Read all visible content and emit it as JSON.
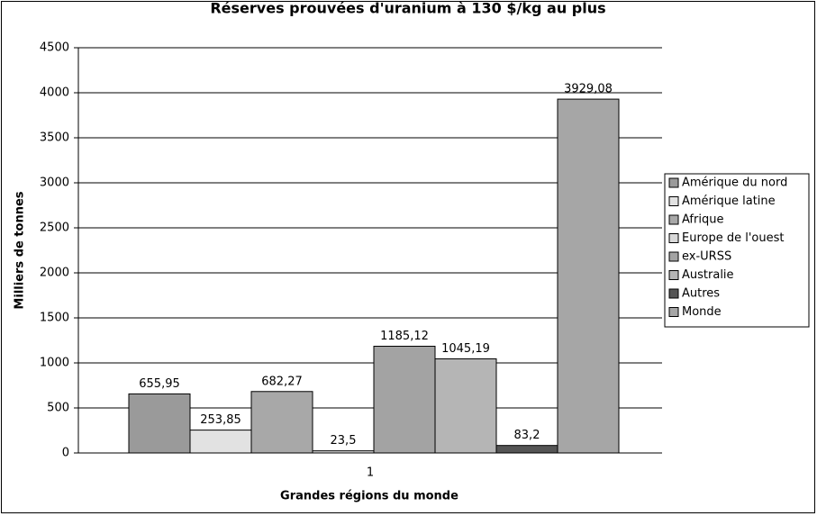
{
  "chart_data": {
    "type": "bar",
    "title": "Réserves prouvées d'uranium à 130  $/kg au plus",
    "x_label": "Grandes régions du monde",
    "y_label": "Milliers de tonnes",
    "categories": [
      "1"
    ],
    "series": [
      {
        "name": "Amérique du nord",
        "color": "#9a9a9a",
        "values": [
          655.95
        ],
        "value_labels": [
          "655,95"
        ]
      },
      {
        "name": "Amérique latine",
        "color": "#e2e2e2",
        "values": [
          253.85
        ],
        "value_labels": [
          "253,85"
        ]
      },
      {
        "name": "Afrique",
        "color": "#a8a8a8",
        "values": [
          682.27
        ],
        "value_labels": [
          "682,27"
        ]
      },
      {
        "name": "Europe de l'ouest",
        "color": "#d8d8d8",
        "values": [
          23.5
        ],
        "value_labels": [
          "23,5"
        ]
      },
      {
        "name": "ex-URSS",
        "color": "#a3a3a3",
        "values": [
          1185.12
        ],
        "value_labels": [
          "1185,12"
        ]
      },
      {
        "name": "Australie",
        "color": "#b5b5b5",
        "values": [
          1045.19
        ],
        "value_labels": [
          "1045,19"
        ]
      },
      {
        "name": "Autres",
        "color": "#555555",
        "values": [
          83.2
        ],
        "value_labels": [
          "83,2"
        ]
      },
      {
        "name": "Monde",
        "color": "#a6a6a6",
        "values": [
          3929.08
        ],
        "value_labels": [
          "3929,08"
        ]
      }
    ],
    "ylim": [
      0,
      4500
    ],
    "yticks": [
      0,
      500,
      1000,
      1500,
      2000,
      2500,
      3000,
      3500,
      4000,
      4500
    ],
    "grid": true,
    "legend": "right"
  }
}
